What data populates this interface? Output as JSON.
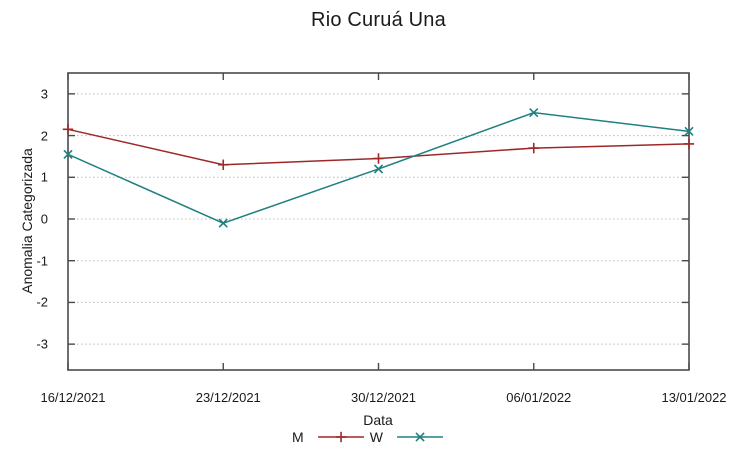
{
  "chart_data": {
    "type": "line",
    "title": "Rio Curuá Una",
    "xlabel": "Data",
    "ylabel": "Anomalia Categorizada",
    "categories": [
      "16/12/2021",
      "23/12/2021",
      "30/12/2021",
      "06/01/2022",
      "13/01/2022"
    ],
    "series": [
      {
        "name": "M",
        "color": "#9e2828",
        "marker": "plus",
        "values": [
          2.15,
          1.3,
          1.45,
          1.7,
          1.8
        ]
      },
      {
        "name": "W",
        "color": "#1f8080",
        "marker": "cross",
        "values": [
          1.55,
          -0.1,
          1.2,
          2.55,
          2.1
        ]
      }
    ],
    "yticks": [
      3,
      2,
      1,
      0,
      -1,
      -2,
      -3
    ],
    "ylim": [
      -3.62,
      3.5
    ],
    "grid": "horizontal-dotted",
    "legend_position": "below-x-label"
  }
}
